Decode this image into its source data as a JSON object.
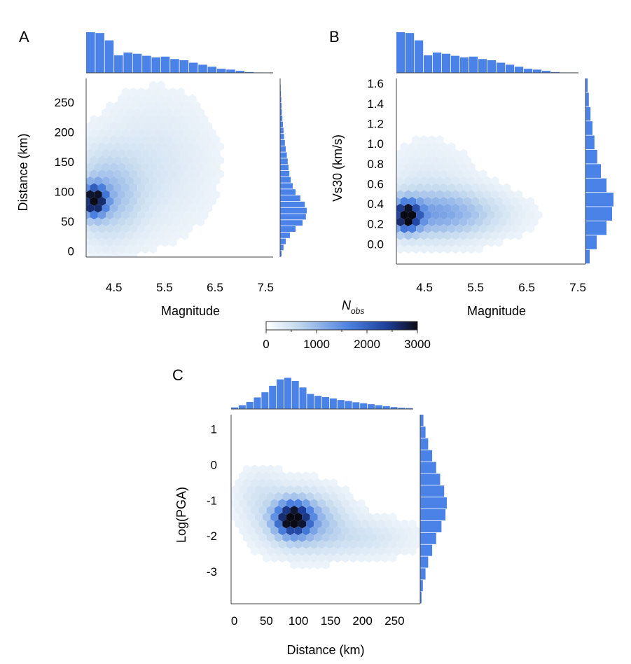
{
  "chart_data": [
    {
      "type": "hexbin",
      "panel_label": "A",
      "xlabel": "Magnitude",
      "ylabel": "Distance (km)",
      "xlim": [
        3.95,
        7.65
      ],
      "ylim": [
        -10,
        290
      ],
      "xticks": [
        4.5,
        5.5,
        6.5,
        7.5
      ],
      "xtick_labels": [
        "4.5",
        "5.5",
        "6.5",
        "7.5"
      ],
      "yticks": [
        0,
        50,
        100,
        150,
        200,
        250
      ],
      "ytick_labels": [
        "0",
        "50",
        "100",
        "150",
        "200",
        "250"
      ],
      "density_components": [
        {
          "x": 4.1,
          "y": 85,
          "sx": 0.16,
          "sy": 16,
          "w": 1.0
        },
        {
          "x": 4.35,
          "y": 95,
          "sx": 0.45,
          "sy": 45,
          "w": 0.22
        },
        {
          "x": 5.3,
          "y": 145,
          "sx": 0.75,
          "sy": 75,
          "w": 0.06
        }
      ],
      "x_hist_counts": [
        1,
        0.98,
        0.8,
        0.43,
        0.5,
        0.47,
        0.42,
        0.38,
        0.4,
        0.34,
        0.31,
        0.25,
        0.2,
        0.15,
        0.1,
        0.08,
        0.05,
        0.02,
        0.01,
        0.01
      ],
      "y_hist_counts": [
        0.05,
        0.12,
        0.2,
        0.35,
        0.55,
        0.8,
        0.92,
        0.95,
        0.88,
        0.72,
        0.55,
        0.45,
        0.38,
        0.33,
        0.3,
        0.27,
        0.24,
        0.2,
        0.17,
        0.14,
        0.12,
        0.1,
        0.08,
        0.06,
        0.05,
        0.04,
        0.03,
        0.02,
        0.01
      ]
    },
    {
      "type": "hexbin",
      "panel_label": "B",
      "xlabel": "Magnitude",
      "ylabel": "Vs30 (km/s)",
      "xlim": [
        3.95,
        7.65
      ],
      "ylim": [
        -0.2,
        1.65
      ],
      "xticks": [
        4.5,
        5.5,
        6.5,
        7.5
      ],
      "xtick_labels": [
        "4.5",
        "5.5",
        "6.5",
        "7.5"
      ],
      "yticks": [
        0.0,
        0.2,
        0.4,
        0.6,
        0.8,
        1.0,
        1.2,
        1.4,
        1.6
      ],
      "ytick_labels": [
        "0.0",
        "0.2",
        "0.4",
        "0.6",
        "0.8",
        "1.0",
        "1.2",
        "1.4",
        "1.6"
      ],
      "density_components": [
        {
          "x": 4.15,
          "y": 0.28,
          "sx": 0.17,
          "sy": 0.09,
          "w": 1.0
        },
        {
          "x": 4.7,
          "y": 0.3,
          "sx": 0.8,
          "sy": 0.15,
          "w": 0.3
        },
        {
          "x": 4.6,
          "y": 0.55,
          "sx": 0.6,
          "sy": 0.3,
          "w": 0.05
        }
      ],
      "x_hist_counts": [
        1,
        0.98,
        0.8,
        0.43,
        0.5,
        0.47,
        0.42,
        0.38,
        0.4,
        0.34,
        0.31,
        0.25,
        0.2,
        0.15,
        0.1,
        0.08,
        0.05,
        0.02,
        0.01,
        0.01
      ],
      "y_hist_counts": [
        0.15,
        0.4,
        0.75,
        0.95,
        1.0,
        0.75,
        0.55,
        0.42,
        0.32,
        0.25,
        0.18,
        0.12,
        0.08
      ]
    },
    {
      "type": "hexbin",
      "panel_label": "C",
      "xlabel": "Distance (km)",
      "ylabel": "Log(PGA)",
      "xlim": [
        -5,
        290
      ],
      "ylim": [
        -3.9,
        1.4
      ],
      "xticks": [
        0,
        50,
        100,
        150,
        200,
        250
      ],
      "xtick_labels": [
        "0",
        "50",
        "100",
        "150",
        "200",
        "250"
      ],
      "yticks": [
        1,
        0,
        -1,
        -2,
        -3
      ],
      "ytick_labels": [
        "1",
        "0",
        "-1",
        "-2",
        "-3"
      ],
      "density_components": [
        {
          "x": 92,
          "y": -1.52,
          "sx": 17,
          "sy": 0.28,
          "w": 1.0
        },
        {
          "x": 105,
          "y": -1.55,
          "sx": 40,
          "sy": 0.5,
          "w": 0.28
        },
        {
          "x": 190,
          "y": -2.05,
          "sx": 55,
          "sy": 0.35,
          "w": 0.08
        },
        {
          "x": 40,
          "y": -0.8,
          "sx": 25,
          "sy": 0.45,
          "w": 0.06
        }
      ],
      "x_hist_counts": [
        0.05,
        0.12,
        0.22,
        0.36,
        0.52,
        0.72,
        0.92,
        0.97,
        0.87,
        0.67,
        0.47,
        0.41,
        0.37,
        0.33,
        0.28,
        0.25,
        0.21,
        0.18,
        0.15,
        0.12,
        0.09,
        0.06,
        0.04,
        0.03
      ],
      "y_hist_counts": [
        0.05,
        0.1,
        0.2,
        0.3,
        0.45,
        0.6,
        0.8,
        0.95,
        1.0,
        0.9,
        0.75,
        0.6,
        0.45,
        0.3,
        0.2,
        0.12
      ]
    }
  ],
  "colorbar": {
    "label": "N",
    "label_subscript": "obs",
    "min": 0,
    "max": 3000,
    "ticks": [
      0,
      1000,
      2000,
      3000
    ],
    "tick_labels": [
      "0",
      "1000",
      "2000",
      "3000"
    ],
    "colormap": [
      "#ffffff",
      "#c6dbef",
      "#4b80e0",
      "#1d3f9a",
      "#0a0a14"
    ]
  },
  "colors": {
    "histogram": "#4a82e8",
    "axis": "#444444"
  }
}
